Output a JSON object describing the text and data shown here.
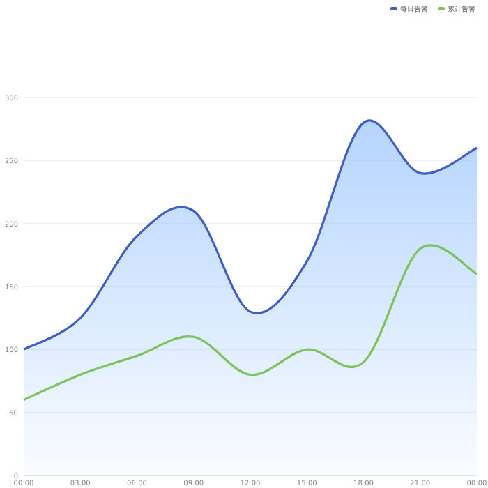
{
  "chart_data": {
    "type": "line",
    "categories": [
      "00:00",
      "03:00",
      "06:00",
      "09:00",
      "12:00",
      "15:00",
      "18:00",
      "21:00",
      "00:00"
    ],
    "series": [
      {
        "name": "每日告警",
        "type": "area",
        "color": "#3f5fc4",
        "values": [
          100,
          125,
          190,
          210,
          130,
          170,
          280,
          240,
          260
        ]
      },
      {
        "name": "累计告警",
        "type": "line",
        "color": "#7cc35a",
        "values": [
          60,
          80,
          95,
          110,
          80,
          100,
          90,
          180,
          160
        ]
      }
    ],
    "ylim": [
      0,
      300
    ],
    "yticks": [
      0,
      50,
      100,
      150,
      200,
      250,
      300
    ],
    "grid": "y",
    "legend": "top right",
    "marker": "none"
  }
}
